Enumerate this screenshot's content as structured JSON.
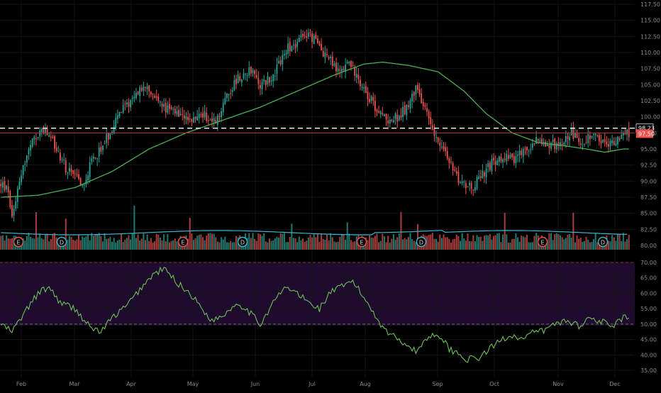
{
  "colors": {
    "background": "#000000",
    "grid": "#1c1c1c",
    "up": "#26a69a",
    "down": "#ef5350",
    "ma": "#4caf50",
    "volume_ma": "#3fb6d3",
    "rsi_line": "#6fbf5a",
    "rsi_band": "#2a0f3a",
    "axis_text": "#8a8a8a",
    "dashed": "#ffffff",
    "price_tag_red": "#ef5350"
  },
  "price_axis": {
    "ticks": [
      "117.50",
      "115.00",
      "112.50",
      "110.00",
      "107.50",
      "105.00",
      "102.50",
      "100.00",
      "97.50",
      "95.00",
      "92.50",
      "90.00",
      "87.50",
      "85.00",
      "82.50",
      "80.00"
    ],
    "min": 80,
    "max": 117.5
  },
  "rsi_axis": {
    "ticks": [
      "70.00",
      "65.00",
      "60.00",
      "55.00",
      "50.00",
      "45.00",
      "40.00",
      "35.00"
    ],
    "min": 35,
    "max": 70
  },
  "price_tags": {
    "dashed_level": "98.23",
    "last_price": "97.50"
  },
  "event_markers": [
    "E",
    "D",
    "E",
    "D",
    "E",
    "D",
    "E",
    "D"
  ],
  "x_axis": {
    "months": [
      "Feb",
      "Mar",
      "Apr",
      "May",
      "Jun",
      "Jul",
      "Aug",
      "Sep",
      "Oct",
      "Nov",
      "Dec"
    ]
  },
  "chart_data": {
    "type": "candlestick",
    "x": [
      "Feb",
      "Mar",
      "Apr",
      "May",
      "Jun",
      "Jul",
      "Aug",
      "Sep",
      "Oct",
      "Nov",
      "Dec"
    ],
    "price_keypoints": [
      [
        0,
        89.5
      ],
      [
        4,
        88.5
      ],
      [
        6,
        84.5
      ],
      [
        10,
        90.5
      ],
      [
        16,
        95.5
      ],
      [
        22,
        98.0
      ],
      [
        26,
        97.0
      ],
      [
        30,
        95.0
      ],
      [
        36,
        91.5
      ],
      [
        44,
        89.5
      ],
      [
        50,
        93.5
      ],
      [
        56,
        96.0
      ],
      [
        62,
        99.5
      ],
      [
        68,
        102.0
      ],
      [
        76,
        104.5
      ],
      [
        82,
        103.5
      ],
      [
        88,
        101.5
      ],
      [
        96,
        100.0
      ],
      [
        102,
        99.0
      ],
      [
        108,
        100.5
      ],
      [
        116,
        99.0
      ],
      [
        122,
        103.5
      ],
      [
        128,
        106.0
      ],
      [
        134,
        107.5
      ],
      [
        140,
        105.0
      ],
      [
        146,
        106.0
      ],
      [
        154,
        110.5
      ],
      [
        160,
        111.5
      ],
      [
        166,
        113.0
      ],
      [
        170,
        111.5
      ],
      [
        176,
        109.5
      ],
      [
        182,
        107.0
      ],
      [
        188,
        108.5
      ],
      [
        194,
        105.5
      ],
      [
        200,
        102.5
      ],
      [
        206,
        100.0
      ],
      [
        212,
        99.5
      ],
      [
        218,
        101.0
      ],
      [
        224,
        104.5
      ],
      [
        230,
        100.5
      ],
      [
        236,
        96.5
      ],
      [
        242,
        93.0
      ],
      [
        248,
        90.0
      ],
      [
        254,
        89.0
      ],
      [
        260,
        91.0
      ],
      [
        266,
        93.0
      ],
      [
        272,
        94.0
      ],
      [
        278,
        93.5
      ],
      [
        284,
        95.0
      ],
      [
        290,
        96.5
      ],
      [
        296,
        95.5
      ],
      [
        302,
        96.0
      ],
      [
        308,
        97.5
      ],
      [
        314,
        96.0
      ],
      [
        320,
        97.0
      ],
      [
        326,
        95.5
      ],
      [
        332,
        96.5
      ],
      [
        336,
        97.5
      ]
    ],
    "ma_keypoints": [
      [
        0,
        87.5
      ],
      [
        20,
        87.8
      ],
      [
        40,
        89.0
      ],
      [
        60,
        91.5
      ],
      [
        80,
        95.0
      ],
      [
        100,
        97.5
      ],
      [
        120,
        99.5
      ],
      [
        140,
        101.5
      ],
      [
        160,
        104.0
      ],
      [
        180,
        106.5
      ],
      [
        196,
        108.2
      ],
      [
        206,
        108.5
      ],
      [
        220,
        108.0
      ],
      [
        236,
        107.0
      ],
      [
        250,
        104.0
      ],
      [
        262,
        100.5
      ],
      [
        276,
        97.5
      ],
      [
        290,
        96.0
      ],
      [
        304,
        95.5
      ],
      [
        316,
        95.0
      ],
      [
        326,
        94.5
      ],
      [
        336,
        95.0
      ]
    ],
    "rsi_keypoints": [
      [
        0,
        50.0
      ],
      [
        6,
        47.5
      ],
      [
        12,
        53.0
      ],
      [
        20,
        60.0
      ],
      [
        26,
        62.0
      ],
      [
        32,
        57.0
      ],
      [
        40,
        55.0
      ],
      [
        48,
        49.0
      ],
      [
        54,
        47.5
      ],
      [
        60,
        52.0
      ],
      [
        68,
        56.0
      ],
      [
        76,
        62.0
      ],
      [
        82,
        66.0
      ],
      [
        88,
        68.0
      ],
      [
        96,
        63.0
      ],
      [
        102,
        60.0
      ],
      [
        108,
        55.5
      ],
      [
        114,
        51.0
      ],
      [
        120,
        53.0
      ],
      [
        128,
        57.0
      ],
      [
        134,
        54.0
      ],
      [
        140,
        50.0
      ],
      [
        148,
        58.0
      ],
      [
        154,
        62.0
      ],
      [
        160,
        60.0
      ],
      [
        166,
        57.0
      ],
      [
        172,
        55.0
      ],
      [
        178,
        60.5
      ],
      [
        184,
        62.0
      ],
      [
        190,
        64.0
      ],
      [
        196,
        58.5
      ],
      [
        200,
        55.0
      ],
      [
        206,
        49.0
      ],
      [
        212,
        46.0
      ],
      [
        218,
        44.0
      ],
      [
        224,
        41.0
      ],
      [
        230,
        45.5
      ],
      [
        236,
        47.0
      ],
      [
        242,
        42.0
      ],
      [
        248,
        40.0
      ],
      [
        252,
        38.5
      ],
      [
        258,
        39.0
      ],
      [
        264,
        42.0
      ],
      [
        270,
        45.0
      ],
      [
        276,
        46.5
      ],
      [
        282,
        45.0
      ],
      [
        288,
        47.5
      ],
      [
        294,
        48.0
      ],
      [
        300,
        50.5
      ],
      [
        306,
        51.0
      ],
      [
        312,
        49.5
      ],
      [
        318,
        52.0
      ],
      [
        324,
        51.0
      ],
      [
        330,
        49.0
      ],
      [
        336,
        52.0
      ]
    ],
    "volume_note": "bars alternate colors by candle direction",
    "price_range": [
      80,
      117.5
    ],
    "rsi_range": [
      35,
      70
    ],
    "rsi_levels": [
      70,
      50
    ],
    "grid": true
  }
}
